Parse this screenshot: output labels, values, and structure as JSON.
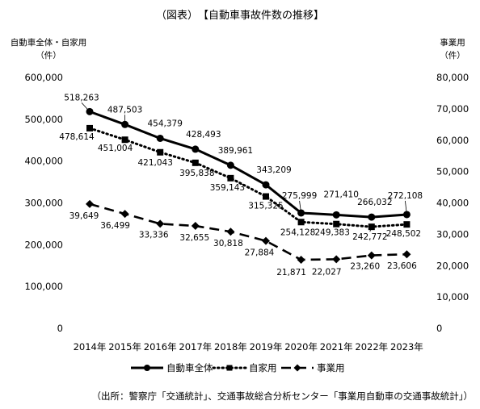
{
  "chart_data": {
    "type": "line",
    "title": "（図表）　【自動車事故件数の推移】",
    "source": "（出所：警察庁「交通統計」、交通事故総合分析センター「事業用自動車の交通事故統計」）",
    "y_left_label": [
      "自動車全体・自家用",
      "（件）"
    ],
    "y_right_label": [
      "事業用",
      "（件）"
    ],
    "categories": [
      "2014年",
      "2015年",
      "2016年",
      "2017年",
      "2018年",
      "2019年",
      "2020年",
      "2021年",
      "2022年",
      "2023年"
    ],
    "y_left_ticks": [
      "0",
      "100,000",
      "200,000",
      "300,000",
      "400,000",
      "500,000",
      "600,000"
    ],
    "y_right_ticks": [
      "0",
      "10,000",
      "20,000",
      "30,000",
      "40,000",
      "50,000",
      "60,000",
      "70,000",
      "80,000"
    ],
    "ylim_left": [
      0,
      600000
    ],
    "ylim_right": [
      0,
      80000
    ],
    "series": [
      {
        "name": "自動車全体",
        "axis": "left",
        "style": "solid",
        "marker": "circle",
        "values": [
          518263,
          487503,
          454379,
          428493,
          389961,
          343209,
          275999,
          271410,
          266032,
          272108
        ],
        "labels": [
          "518,263",
          "487,503",
          "454,379",
          "428,493",
          "389,961",
          "343,209",
          "275,999",
          "271,410",
          "266,032",
          "272,108"
        ]
      },
      {
        "name": "自家用",
        "axis": "left",
        "style": "dotted",
        "marker": "square",
        "values": [
          478614,
          451004,
          421043,
          395838,
          359143,
          315325,
          254128,
          249383,
          242772,
          248502
        ],
        "labels": [
          "478,614",
          "451,004",
          "421,043",
          "395,838",
          "359,143",
          "315,325",
          "254,128",
          "249,383",
          "242,772",
          "248,502"
        ]
      },
      {
        "name": "事業用",
        "axis": "right",
        "style": "dashed",
        "marker": "diamond",
        "values": [
          39649,
          36499,
          33336,
          32655,
          30818,
          27884,
          21871,
          22027,
          23260,
          23606
        ],
        "labels": [
          "39,649",
          "36,499",
          "33,336",
          "32,655",
          "30,818",
          "27,884",
          "21,871",
          "22,027",
          "23,260",
          "23,606"
        ]
      }
    ],
    "legend_position": "bottom",
    "grid": false
  }
}
